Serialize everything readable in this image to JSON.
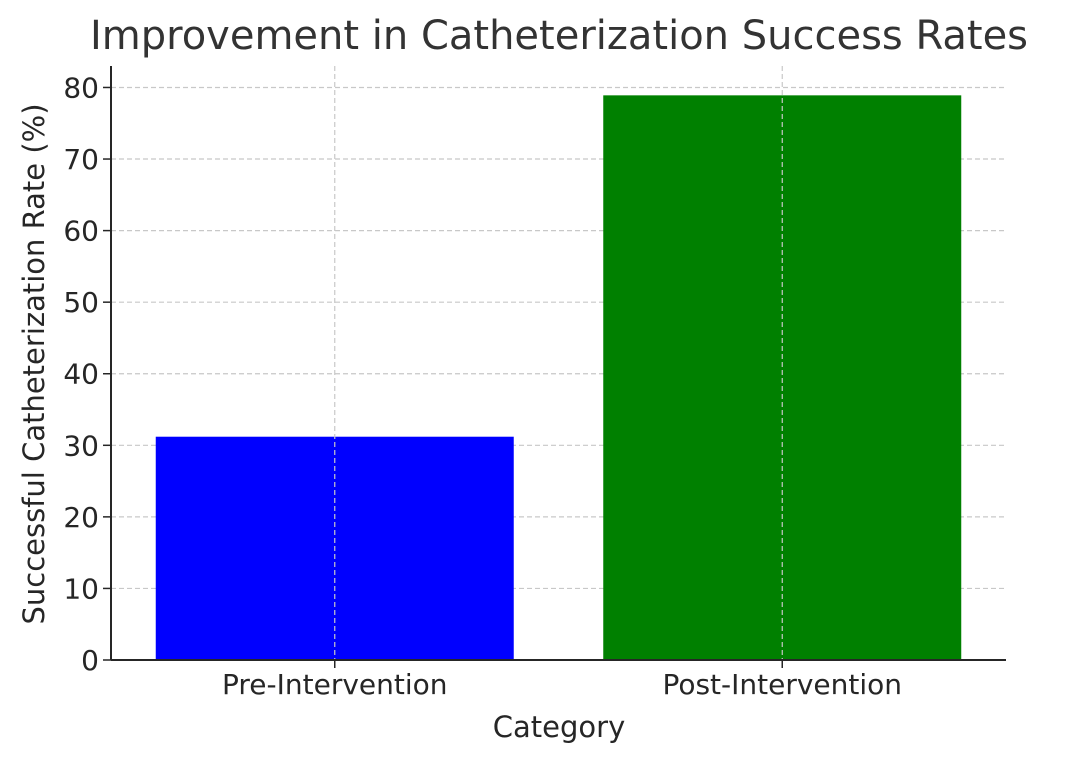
{
  "chart_data": {
    "type": "bar",
    "title": "Improvement in Catheterization Success Rates",
    "xlabel": "Category",
    "ylabel": "Successful Catheterization Rate (%)",
    "categories": [
      "Pre-Intervention",
      "Post-Intervention"
    ],
    "values": [
      31.2,
      78.9
    ],
    "colors": [
      "#0000ff",
      "#008000"
    ],
    "ylim": [
      0,
      83
    ],
    "yticks": [
      0,
      10,
      20,
      30,
      40,
      50,
      60,
      70,
      80
    ],
    "grid": true
  }
}
